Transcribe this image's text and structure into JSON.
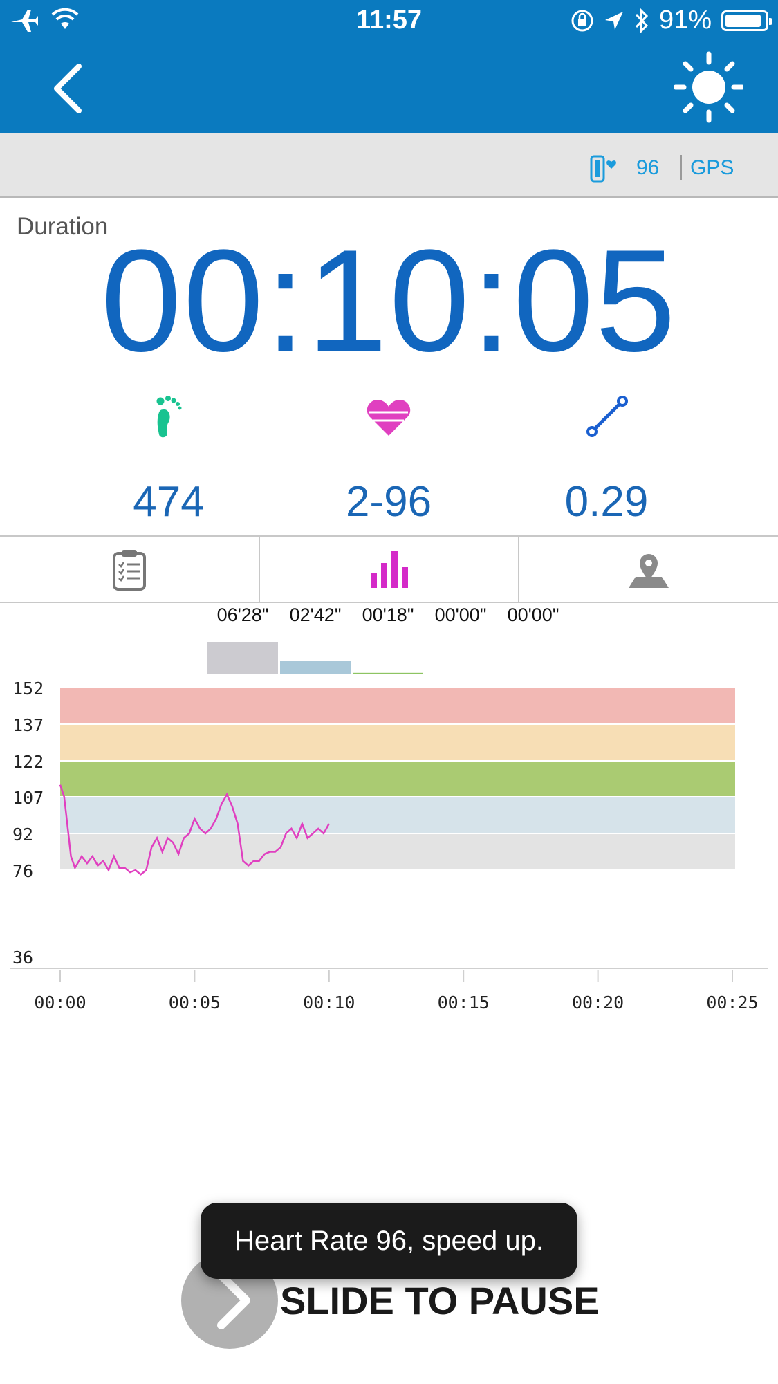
{
  "status_bar": {
    "time": "11:57",
    "battery": "91%",
    "battery_fraction": 0.91
  },
  "band_status": {
    "heart_rate": "96",
    "gps": "GPS"
  },
  "duration": {
    "label": "Duration",
    "value": "00:10:05"
  },
  "metrics": [
    {
      "icon": "footprint-icon",
      "value": "474",
      "color": "#19c390"
    },
    {
      "icon": "heart-icon",
      "value": "2-96",
      "color": "#e040c0"
    },
    {
      "icon": "distance-icon",
      "value": "0.29",
      "color": "#1a5fd0"
    }
  ],
  "tabs": [
    {
      "icon": "clipboard-icon",
      "active": false
    },
    {
      "icon": "bar-chart-icon",
      "active": true
    },
    {
      "icon": "map-pin-icon",
      "active": false
    }
  ],
  "zone_times": [
    "06'28\"",
    "02'42\"",
    "00'18\"",
    "00'00\"",
    "00'00\""
  ],
  "chart_data": {
    "type": "line",
    "y_ticks": [
      152,
      137,
      122,
      107,
      92,
      76,
      36
    ],
    "x_ticks": [
      "00:00",
      "00:05",
      "00:10",
      "00:15",
      "00:20",
      "00:25"
    ],
    "xlim_minutes": [
      0,
      25
    ],
    "ylim": [
      36,
      152
    ],
    "zones": [
      {
        "from": 137,
        "to": 152,
        "color": "#f2b8b4"
      },
      {
        "from": 122,
        "to": 137,
        "color": "#f7deb5"
      },
      {
        "from": 107,
        "to": 122,
        "color": "#aacb72"
      },
      {
        "from": 92,
        "to": 107,
        "color": "#d6e3ea"
      },
      {
        "from": 76,
        "to": 92,
        "color": "#e3e3e3"
      }
    ],
    "zone_bar_minutes": [
      6.47,
      2.7,
      0.3,
      0,
      0
    ],
    "zone_bar_colors": [
      "#cccbd0",
      "#a9c8d9",
      "#8dc462",
      "#f0b0a8",
      "#f3d9a5"
    ],
    "series": [
      {
        "color": "#e040c0",
        "x": [
          0,
          0.15,
          0.4,
          0.55,
          0.8,
          1.0,
          1.2,
          1.4,
          1.6,
          1.8,
          2.0,
          2.2,
          2.4,
          2.6,
          2.8,
          3.0,
          3.2,
          3.4,
          3.6,
          3.8,
          4.0,
          4.2,
          4.4,
          4.6,
          4.8,
          5.0,
          5.2,
          5.4,
          5.6,
          5.8,
          6.0,
          6.2,
          6.4,
          6.6,
          6.8,
          7.0,
          7.2,
          7.4,
          7.6,
          7.8,
          8.0,
          8.2,
          8.4,
          8.6,
          8.8,
          9.0,
          9.2,
          9.4,
          9.6,
          9.8,
          10.0
        ],
        "y": [
          112,
          107,
          82,
          77,
          82,
          79,
          82,
          78,
          80,
          76,
          82,
          77,
          77,
          75,
          76,
          74,
          76,
          86,
          90,
          84,
          90,
          88,
          83,
          90,
          92,
          98,
          94,
          92,
          94,
          98,
          104,
          108,
          103,
          96,
          80,
          78,
          80,
          80,
          83,
          84,
          84,
          86,
          92,
          94,
          90,
          96,
          90,
          92,
          94,
          92,
          96
        ]
      }
    ]
  },
  "toast": "Heart Rate 96, speed up.",
  "slide_label": "SLIDE TO PAUSE"
}
